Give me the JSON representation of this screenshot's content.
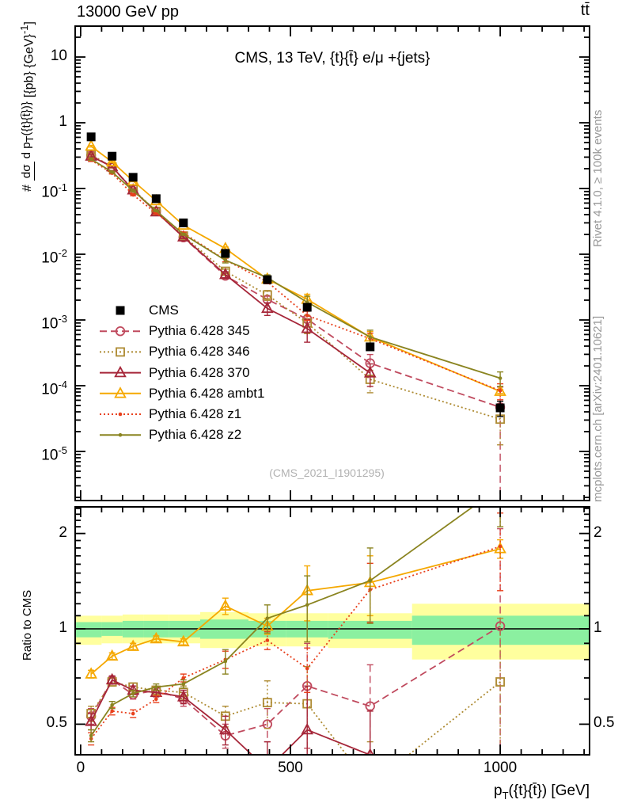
{
  "header": {
    "left": "13000 GeV pp",
    "right": "tt̄"
  },
  "subtitle": "CMS, 13 TeV, {t}{t̄} e/μ +{jets}",
  "watermark": "(CMS_2021_I1901295)",
  "side_notes": {
    "top": "Rivet 4.1.0, ≥ 100k events",
    "bottom": "mcplots.cern.ch [arXiv:2401.10621]"
  },
  "axes": {
    "x": {
      "title_pre": "p",
      "title_sub": "T",
      "title_post": "({t}{t̄}) [GeV]",
      "range": [
        -13,
        1213
      ],
      "minor_step": 50,
      "major_step": 500,
      "ticks": [
        {
          "v": 0,
          "label": "0"
        },
        {
          "v": 500,
          "label": "500"
        },
        {
          "v": 1000,
          "label": "1000"
        }
      ]
    },
    "main_y": {
      "prefix": "#",
      "numerator": "dσ",
      "den_pre": "d p",
      "den_sub": "T",
      "den_post": "({t}{t̄})}",
      "units_pre": " [{pb} {GeV}",
      "units_exp": "-1",
      "units_post": "]",
      "scale": "log",
      "range": [
        1.8e-06,
        29.6
      ],
      "ticks": [
        {
          "v": 10,
          "base": "10",
          "exp": ""
        },
        {
          "v": 1,
          "base": "1",
          "exp": ""
        },
        {
          "v": 0.1,
          "base": "10",
          "exp": "-1"
        },
        {
          "v": 0.01,
          "base": "10",
          "exp": "-2"
        },
        {
          "v": 0.001,
          "base": "10",
          "exp": "-3"
        },
        {
          "v": 0.0001,
          "base": "10",
          "exp": "-4"
        },
        {
          "v": 1e-05,
          "base": "10",
          "exp": "-5"
        }
      ]
    },
    "ratio_y": {
      "title": "Ratio to CMS",
      "scale": "log",
      "range": [
        0.4,
        2.43
      ],
      "ticks": [
        {
          "v": 0.5,
          "label": "0.5"
        },
        {
          "v": 1,
          "label": "1"
        },
        {
          "v": 2,
          "label": "2"
        }
      ]
    }
  },
  "chart_data": {
    "type": "line",
    "title": "CMS, 13 TeV, {t}{t̄} e/μ +{jets}",
    "xlabel": "p_T({t}{t̄}) [GeV]",
    "ylabel_main": "# dσ/d p_T({t}{t̄})} [{pb} {GeV}^-1]",
    "ylabel_ratio": "Ratio to CMS",
    "x": [
      25,
      75,
      125,
      180,
      245,
      345,
      445,
      540,
      690,
      1000
    ],
    "bin_edges": [
      0,
      50,
      100,
      150,
      210,
      285,
      400,
      490,
      590,
      790,
      1210
    ],
    "cms": {
      "label": "CMS",
      "color": "#000000",
      "marker": "square-filled",
      "values": [
        0.61,
        0.31,
        0.148,
        0.07,
        0.03,
        0.0103,
        0.0041,
        0.00156,
        0.00039,
        4.6e-05
      ],
      "err": [
        0.012,
        0.006,
        0.003,
        0.0015,
        0.0008,
        0.0004,
        0.0002,
        0.0001,
        4e-05,
        1.2e-05
      ]
    },
    "series": [
      {
        "name": "Pythia 6.428 345",
        "color": "#c04a5e",
        "line": "dashed",
        "marker": "circle-open",
        "values": [
          0.32,
          0.214,
          0.092,
          0.045,
          0.018,
          0.0047,
          0.00205,
          0.00103,
          0.00022,
          4.7e-05
        ],
        "ratio": [
          0.53,
          0.69,
          0.62,
          0.64,
          0.6,
          0.46,
          0.5,
          0.66,
          0.57,
          1.02
        ],
        "ratio_err": [
          0.03,
          0.02,
          0.02,
          0.02,
          0.03,
          0.04,
          0.06,
          0.24,
          0.2,
          1.05
        ]
      },
      {
        "name": "Pythia 6.428 346",
        "color": "#ae8b33",
        "line": "dotted",
        "marker": "square-open",
        "values": [
          0.33,
          0.211,
          0.097,
          0.045,
          0.0189,
          0.0055,
          0.0024,
          0.0009,
          0.000125,
          3.1e-05
        ],
        "ratio": [
          0.54,
          0.68,
          0.655,
          0.64,
          0.63,
          0.53,
          0.585,
          0.58,
          0.32,
          0.68
        ],
        "ratio_err": [
          0.03,
          0.02,
          0.02,
          0.02,
          0.03,
          0.04,
          0.1,
          0.18,
          0.12,
          0.4
        ]
      },
      {
        "name": "Pythia 6.428 370",
        "color": "#a62639",
        "line": "solid",
        "marker": "triangle-open",
        "values": [
          0.31,
          0.214,
          0.095,
          0.044,
          0.0183,
          0.0049,
          0.0015,
          0.00074,
          0.000156,
          null
        ],
        "ratio": [
          0.51,
          0.69,
          0.64,
          0.63,
          0.61,
          0.48,
          0.36,
          0.48,
          0.4,
          null
        ],
        "ratio_err": [
          0.03,
          0.02,
          0.02,
          0.02,
          0.03,
          0.05,
          0.08,
          0.18,
          0.15,
          0
        ]
      },
      {
        "name": "Pythia 6.428 ambt1",
        "color": "#f5a800",
        "line": "solid",
        "marker": "triangle-open",
        "values": [
          0.44,
          0.254,
          0.13,
          0.065,
          0.0276,
          0.0122,
          0.0042,
          0.00206,
          0.00055,
          8.2e-05
        ],
        "ratio": [
          0.72,
          0.82,
          0.88,
          0.93,
          0.91,
          1.18,
          1.02,
          1.32,
          1.4,
          1.79
        ],
        "ratio_err": [
          0.02,
          0.02,
          0.02,
          0.02,
          0.02,
          0.07,
          0.06,
          0.26,
          0.3,
          0.12
        ]
      },
      {
        "name": "Pythia 6.428 z1",
        "color": "#e8401c",
        "line": "dotted",
        "marker": "dot",
        "values": [
          0.27,
          0.171,
          0.08,
          0.042,
          0.021,
          0.0082,
          0.0038,
          0.00117,
          0.00052,
          8.4e-05
        ],
        "ratio": [
          0.45,
          0.55,
          0.54,
          0.6,
          0.7,
          0.8,
          0.92,
          0.75,
          1.33,
          1.82
        ],
        "ratio_err": [
          0.02,
          0.015,
          0.015,
          0.015,
          0.02,
          0.05,
          0.06,
          0.12,
          0.28,
          0.5
        ]
      },
      {
        "name": "Pythia 6.428 z2",
        "color": "#8a8420",
        "line": "solid",
        "marker": "dot",
        "values": [
          0.28,
          0.178,
          0.0925,
          0.046,
          0.0201,
          0.0081,
          0.0044,
          0.00186,
          0.00055,
          0.00013
        ],
        "ratio": [
          0.46,
          0.575,
          0.625,
          0.655,
          0.67,
          0.79,
          1.08,
          1.19,
          1.42,
          2.8
        ],
        "ratio_err": [
          0.02,
          0.015,
          0.015,
          0.015,
          0.02,
          0.07,
          0.11,
          0.28,
          0.38,
          0.7
        ]
      }
    ],
    "ratio_bands": {
      "yellow_color": "#ffff9e",
      "green_color": "#8bf0a0",
      "yellow_hi": [
        1.1,
        1.1,
        1.11,
        1.11,
        1.11,
        1.13,
        1.12,
        1.12,
        1.12,
        1.2
      ],
      "yellow_lo": [
        0.89,
        0.9,
        0.9,
        0.9,
        0.9,
        0.87,
        0.88,
        0.88,
        0.87,
        0.8
      ],
      "green_hi": [
        1.05,
        1.05,
        1.06,
        1.06,
        1.06,
        1.07,
        1.06,
        1.06,
        1.06,
        1.1
      ],
      "green_lo": [
        0.94,
        0.95,
        0.94,
        0.94,
        0.94,
        0.93,
        0.94,
        0.94,
        0.93,
        0.89
      ]
    },
    "legend_position": "inside-left-middle",
    "grid": false
  }
}
